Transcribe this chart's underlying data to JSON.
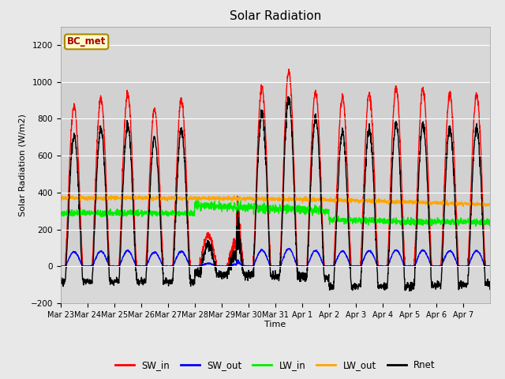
{
  "title": "Solar Radiation",
  "ylabel": "Solar Radiation (W/m2)",
  "xlabel": "Time",
  "ylim": [
    -200,
    1300
  ],
  "yticks": [
    -200,
    0,
    200,
    400,
    600,
    800,
    1000,
    1200
  ],
  "annotation": "BC_met",
  "annotation_color": "#AA0000",
  "annotation_bg": "#FFFACD",
  "annotation_edge": "#AA8800",
  "n_days": 16,
  "xtick_labels": [
    "Mar 23",
    "Mar 24",
    "Mar 25",
    "Mar 26",
    "Mar 27",
    "Mar 28",
    "Mar 29",
    "Mar 30",
    "Mar 31",
    "Apr 1",
    "Apr 2",
    "Apr 3",
    "Apr 4",
    "Apr 5",
    "Apr 6",
    "Apr 7"
  ],
  "colors": {
    "SW_in": "#FF0000",
    "SW_out": "#0000FF",
    "LW_in": "#00EE00",
    "LW_out": "#FFA500",
    "Rnet": "#000000"
  },
  "lw_in_base": 265,
  "lw_out_base": 370,
  "fig_bg": "#E8E8E8",
  "plot_bg": "#D8D8D8",
  "shade_bg": "#CCCCCC",
  "grid_color": "#FFFFFF"
}
